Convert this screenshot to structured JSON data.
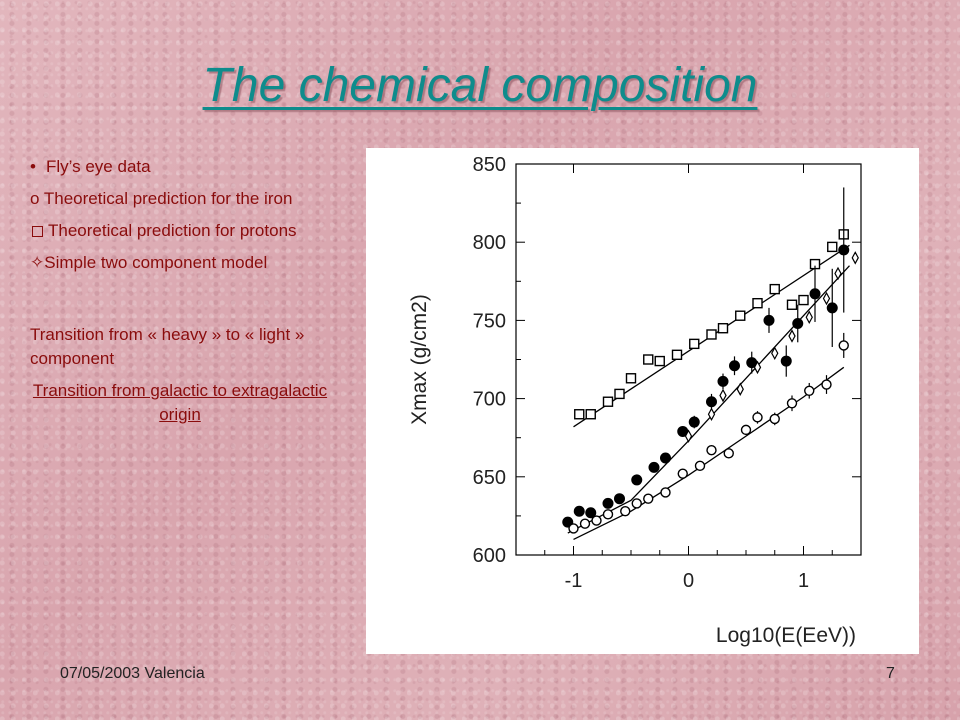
{
  "slide": {
    "title": "The chemical composition",
    "footer_left": "07/05/2003 Valencia",
    "page_number": "7"
  },
  "left_panel": {
    "item1": "Fly’s eye data",
    "item2": "Theoretical prediction for the iron",
    "item3": "Theoretical prediction for protons",
    "item4": "Simple two component model",
    "transition_text": "Transition from « heavy » to « light » component",
    "transition_link": "Transition from galactic to extragalactic origin"
  },
  "chart_data": {
    "type": "scatter",
    "title": "",
    "xlabel": "Log10(E(EeV))",
    "ylabel": "Xmax (g/cm2)",
    "xlim": [
      -1.5,
      1.5
    ],
    "ylim": [
      600,
      850
    ],
    "xticks": [
      -1,
      0,
      1
    ],
    "yticks": [
      600,
      650,
      700,
      750,
      800,
      850
    ],
    "grid": false,
    "legend": "none",
    "series": [
      {
        "marker": "open-square",
        "x": [
          -0.95,
          -0.85,
          -0.7,
          -0.6,
          -0.5,
          -0.35,
          -0.25,
          -0.1,
          0.05,
          0.2,
          0.3,
          0.45,
          0.6,
          0.75,
          0.9,
          1.0,
          1.1,
          1.25,
          1.35
        ],
        "y": [
          690,
          690,
          698,
          703,
          713,
          725,
          724,
          728,
          735,
          741,
          745,
          753,
          761,
          770,
          760,
          763,
          786,
          797,
          805
        ]
      },
      {
        "marker": "filled-circle",
        "x": [
          -1.05,
          -0.95,
          -0.85,
          -0.7,
          -0.6,
          -0.45,
          -0.3,
          -0.2,
          -0.05,
          0.05,
          0.2,
          0.3,
          0.4,
          0.55,
          0.7,
          0.85,
          0.95,
          1.1,
          1.25,
          1.35
        ],
        "y": [
          621,
          628,
          627,
          633,
          636,
          648,
          656,
          662,
          679,
          685,
          698,
          711,
          721,
          723,
          750,
          724,
          748,
          767,
          758,
          795
        ],
        "yerr": [
          3,
          3,
          3,
          3,
          3,
          3,
          3,
          3,
          3,
          4,
          5,
          5,
          6,
          7,
          8,
          10,
          12,
          18,
          25,
          40
        ]
      },
      {
        "marker": "open-diamond",
        "x": [
          0.0,
          0.2,
          0.3,
          0.45,
          0.6,
          0.75,
          0.9,
          1.05,
          1.2,
          1.3,
          1.45
        ],
        "y": [
          676,
          690,
          702,
          706,
          720,
          729,
          740,
          752,
          764,
          780,
          790
        ]
      },
      {
        "marker": "open-circle",
        "x": [
          -1.0,
          -0.9,
          -0.8,
          -0.7,
          -0.55,
          -0.45,
          -0.35,
          -0.2,
          -0.05,
          0.1,
          0.2,
          0.35,
          0.5,
          0.6,
          0.75,
          0.9,
          1.05,
          1.2,
          1.35
        ],
        "y": [
          617,
          620,
          622,
          626,
          628,
          633,
          636,
          640,
          652,
          657,
          667,
          665,
          680,
          688,
          687,
          697,
          705,
          709,
          734
        ],
        "yerr": [
          2,
          2,
          2,
          2,
          2,
          2,
          2,
          2,
          2,
          3,
          3,
          3,
          3,
          4,
          4,
          5,
          5,
          6,
          8
        ]
      }
    ],
    "fit_lines": [
      {
        "x": [
          -1.0,
          1.4
        ],
        "y": [
          682,
          798
        ]
      },
      {
        "x": [
          -1.05,
          -0.5,
          0.0,
          0.5,
          1.0,
          1.4
        ],
        "y": [
          614,
          635,
          673,
          713,
          753,
          785
        ]
      },
      {
        "x": [
          -1.0,
          -0.5,
          0.0,
          0.5,
          1.0,
          1.35
        ],
        "y": [
          610,
          628,
          651,
          676,
          701,
          720
        ]
      }
    ]
  }
}
